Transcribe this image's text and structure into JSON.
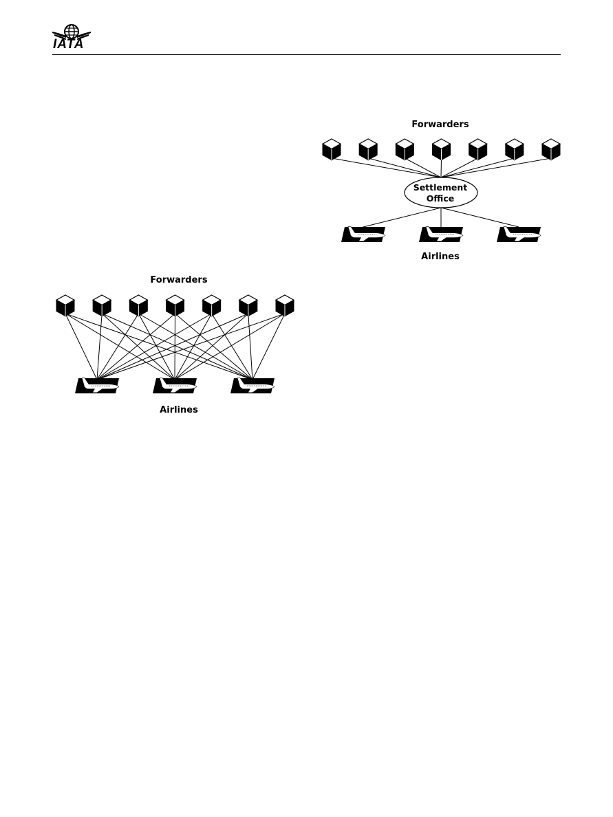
{
  "header": {
    "logo_text": "IATA",
    "logo_icon": "iata-globe-wings-icon"
  },
  "diagram_settlement": {
    "top_label": "Forwarders",
    "hub_line1": "Settlement",
    "hub_line2": "Office",
    "bottom_label": "Airlines",
    "forwarder_count": 7,
    "airline_count": 3
  },
  "diagram_direct": {
    "top_label": "Forwarders",
    "bottom_label": "Airlines",
    "forwarder_count": 7,
    "airline_count": 3
  },
  "colors": {
    "ink": "#000000",
    "paper": "#ffffff"
  },
  "icons": {
    "forwarder": "package-box-icon",
    "airline": "airplane-icon"
  }
}
